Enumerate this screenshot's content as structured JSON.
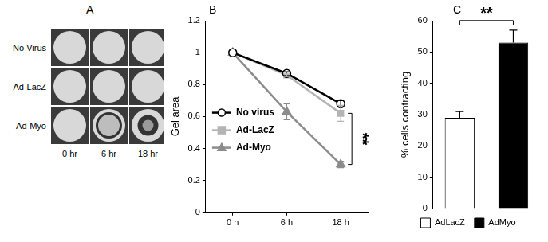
{
  "panel_a": {
    "panel_label": "A",
    "rows": [
      "No Virus",
      "Ad-LacZ",
      "Ad-Myo"
    ],
    "columns": [
      "0 hr",
      "6 hr",
      "18 hr"
    ]
  },
  "chart_data": [
    {
      "panel_label": "B",
      "type": "line",
      "y_label": "Gel area",
      "categories": [
        "0 h",
        "6 h",
        "18 h"
      ],
      "series": [
        {
          "name": "No virus",
          "color": "#000000",
          "marker": "open-circle",
          "values": [
            1,
            0.87,
            0.68
          ],
          "errors": [
            null,
            0.01,
            0.02
          ]
        },
        {
          "name": "Ad-LacZ",
          "color": "#b4b4b4",
          "marker": "square",
          "values": [
            1,
            0.86,
            0.62
          ],
          "errors": [
            null,
            0.01,
            0.05
          ]
        },
        {
          "name": "Ad-Myo",
          "color": "#8c8c8c",
          "marker": "triangle",
          "values": [
            1,
            0.63,
            0.3
          ],
          "errors": [
            null,
            0.05,
            0.02
          ]
        }
      ],
      "ylim": [
        0,
        1.2
      ],
      "yticks": [
        0,
        0.2,
        0.4,
        0.6,
        0.8,
        1,
        1.2
      ],
      "grid": false,
      "legend": "left",
      "annotation": {
        "text": "**",
        "between": [
          "Ad-LacZ",
          "Ad-Myo"
        ]
      }
    },
    {
      "panel_label": "C",
      "type": "bar",
      "y_label": "% cells contracting",
      "categories": [
        "AdLacZ",
        "AdMyo"
      ],
      "values": [
        29,
        53
      ],
      "errors": [
        2,
        4
      ],
      "colors": [
        "#ffffff",
        "#000000"
      ],
      "ylim": [
        0,
        60
      ],
      "yticks": [
        0,
        10,
        20,
        30,
        40,
        50,
        60
      ],
      "grid": false,
      "legend": "bottom",
      "tick_labels": "y",
      "annotation": {
        "text": "**",
        "between": [
          "AdLacZ",
          "AdMyo"
        ]
      }
    }
  ]
}
